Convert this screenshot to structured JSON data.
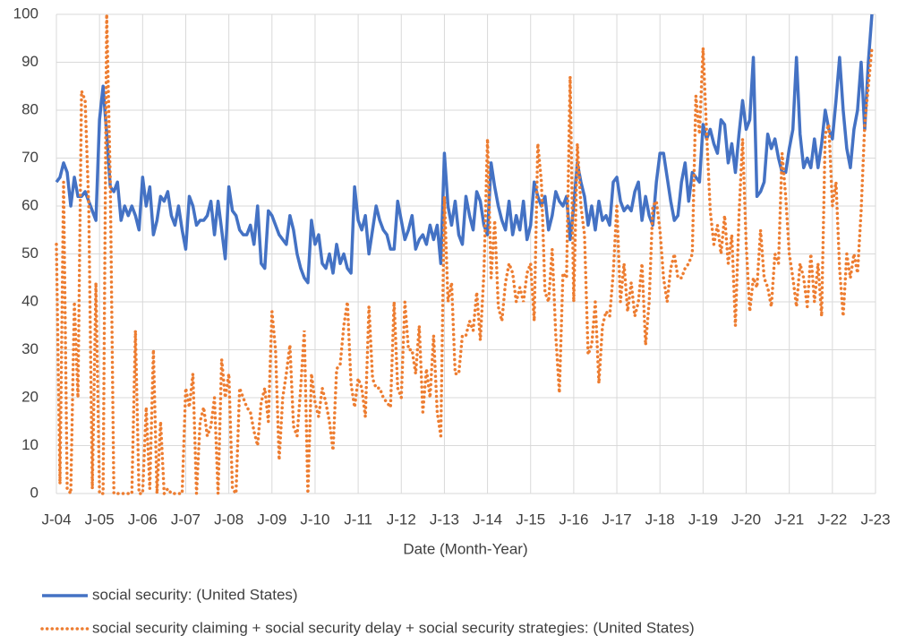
{
  "chart_data": {
    "type": "line",
    "x_label": "Date (Month-Year)",
    "categories": [
      "J-04",
      null,
      null,
      null,
      null,
      null,
      null,
      null,
      null,
      null,
      null,
      null,
      "J-05",
      null,
      null,
      null,
      null,
      null,
      null,
      null,
      null,
      null,
      null,
      null,
      "J-06",
      null,
      null,
      null,
      null,
      null,
      null,
      null,
      null,
      null,
      null,
      null,
      "J-07",
      null,
      null,
      null,
      null,
      null,
      null,
      null,
      null,
      null,
      null,
      null,
      "J-08",
      null,
      null,
      null,
      null,
      null,
      null,
      null,
      null,
      null,
      null,
      null,
      "J-09",
      null,
      null,
      null,
      null,
      null,
      null,
      null,
      null,
      null,
      null,
      null,
      "J-10",
      null,
      null,
      null,
      null,
      null,
      null,
      null,
      null,
      null,
      null,
      null,
      "J-11",
      null,
      null,
      null,
      null,
      null,
      null,
      null,
      null,
      null,
      null,
      null,
      "J-12",
      null,
      null,
      null,
      null,
      null,
      null,
      null,
      null,
      null,
      null,
      null,
      "J-13",
      null,
      null,
      null,
      null,
      null,
      null,
      null,
      null,
      null,
      null,
      null,
      "J-14",
      null,
      null,
      null,
      null,
      null,
      null,
      null,
      null,
      null,
      null,
      null,
      "J-15",
      null,
      null,
      null,
      null,
      null,
      null,
      null,
      null,
      null,
      null,
      null,
      "J-16",
      null,
      null,
      null,
      null,
      null,
      null,
      null,
      null,
      null,
      null,
      null,
      "J-17",
      null,
      null,
      null,
      null,
      null,
      null,
      null,
      null,
      null,
      null,
      null,
      "J-18",
      null,
      null,
      null,
      null,
      null,
      null,
      null,
      null,
      null,
      null,
      null,
      "J-19",
      null,
      null,
      null,
      null,
      null,
      null,
      null,
      null,
      null,
      null,
      null,
      "J-20",
      null,
      null,
      null,
      null,
      null,
      null,
      null,
      null,
      null,
      null,
      null,
      "J-21",
      null,
      null,
      null,
      null,
      null,
      null,
      null,
      null,
      null,
      null,
      null,
      "J-22",
      null,
      null,
      null,
      null,
      null,
      null,
      null,
      null,
      null,
      null,
      null,
      "J-23"
    ],
    "series": [
      {
        "name": "social security: (United States)",
        "color": "#4472c4",
        "dash": "solid",
        "values": [
          65,
          66,
          69,
          67,
          60,
          66,
          62,
          62,
          63,
          61,
          59,
          57,
          78,
          85,
          75,
          64,
          63,
          65,
          57,
          60,
          58,
          60,
          58,
          55,
          66,
          60,
          64,
          54,
          57,
          62,
          61,
          63,
          58,
          56,
          60,
          55,
          51,
          62,
          60,
          56,
          57,
          57,
          58,
          61,
          54,
          61,
          55,
          49,
          64,
          59,
          58,
          55,
          54,
          54,
          56,
          52,
          60,
          48,
          47,
          59,
          58,
          56,
          54,
          53,
          52,
          58,
          55,
          50,
          47,
          45,
          44,
          57,
          52,
          54,
          48,
          47,
          50,
          46,
          52,
          48,
          50,
          47,
          46,
          64,
          57,
          55,
          58,
          50,
          55,
          60,
          57,
          55,
          54,
          51,
          51,
          61,
          57,
          53,
          55,
          58,
          51,
          53,
          54,
          52,
          56,
          53,
          56,
          48,
          71,
          60,
          56,
          61,
          54,
          52,
          62,
          58,
          55,
          63,
          61,
          56,
          54,
          69,
          64,
          60,
          57,
          55,
          61,
          54,
          58,
          55,
          61,
          53,
          56,
          65,
          62,
          60,
          62,
          55,
          58,
          63,
          61,
          60,
          62,
          53,
          60,
          69,
          65,
          62,
          56,
          60,
          55,
          61,
          57,
          58,
          56,
          65,
          66,
          61,
          59,
          60,
          59,
          63,
          65,
          57,
          62,
          58,
          56,
          65,
          71,
          71,
          66,
          61,
          57,
          58,
          65,
          69,
          61,
          67,
          66,
          65,
          77,
          74,
          76,
          73,
          71,
          78,
          77,
          69,
          73,
          67,
          75,
          82,
          76,
          78,
          91,
          62,
          63,
          65,
          75,
          72,
          74,
          70,
          67,
          67,
          72,
          76,
          91,
          75,
          68,
          70,
          68,
          74,
          68,
          73,
          80,
          76,
          74,
          82,
          91,
          80,
          72,
          68,
          76,
          80,
          90,
          76,
          90,
          100,
          null
        ]
      },
      {
        "name": "social security claiming + social security delay + social security strategies: (United States)",
        "color": "#ed7d31",
        "dash": "dotted",
        "values": [
          52,
          2,
          65,
          1,
          0,
          40,
          20,
          84,
          82,
          60,
          1,
          44,
          0,
          0,
          100,
          65,
          0,
          0,
          0,
          0,
          0,
          0,
          34,
          0,
          0,
          18,
          1,
          30,
          0,
          15,
          0,
          1,
          0,
          0,
          0,
          0,
          22,
          18,
          25,
          0,
          15,
          18,
          12,
          14,
          20,
          0,
          28,
          20,
          25,
          1,
          0,
          22,
          20,
          18,
          17,
          13,
          10,
          19,
          22,
          15,
          38,
          30,
          7,
          20,
          25,
          31,
          14,
          12,
          22,
          34,
          0,
          25,
          19,
          16,
          22,
          19,
          15,
          9,
          26,
          27,
          35,
          40,
          23,
          18,
          24,
          22,
          16,
          39,
          24,
          22,
          22,
          20,
          19,
          18,
          40,
          22,
          20,
          40,
          30,
          30,
          25,
          35,
          17,
          26,
          20,
          33,
          17,
          12,
          62,
          40,
          44,
          25,
          25,
          33,
          33,
          36,
          34,
          42,
          32,
          46,
          74,
          45,
          57,
          39,
          36,
          44,
          48,
          46,
          40,
          43,
          40,
          46,
          48,
          36,
          73,
          65,
          42,
          40,
          51,
          33,
          21,
          46,
          45,
          87,
          40,
          73,
          60,
          54,
          29,
          31,
          40,
          23,
          35,
          38,
          37,
          46,
          60,
          40,
          48,
          38,
          44,
          37,
          40,
          48,
          31,
          40,
          60,
          61,
          55,
          45,
          40,
          47,
          50,
          45,
          45,
          47,
          48,
          50,
          83,
          75,
          93,
          75,
          59,
          52,
          56,
          50,
          58,
          48,
          54,
          35,
          58,
          74,
          52,
          38,
          45,
          43,
          55,
          45,
          43,
          39,
          50,
          48,
          71,
          62,
          50,
          45,
          39,
          48,
          45,
          39,
          50,
          40,
          48,
          37,
          75,
          77,
          60,
          65,
          47,
          37,
          50,
          45,
          50,
          46,
          59,
          77,
          85,
          93,
          null
        ]
      }
    ],
    "ylim": [
      0,
      100
    ],
    "yticks": [
      0,
      10,
      20,
      30,
      40,
      50,
      60,
      70,
      80,
      90,
      100
    ],
    "grid": true,
    "legend": "bottom"
  }
}
